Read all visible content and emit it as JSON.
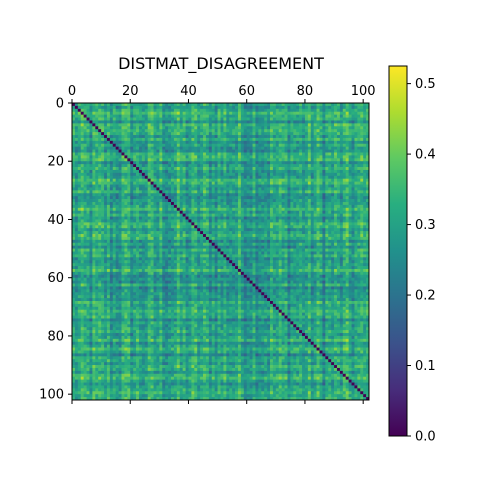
{
  "chart_data": {
    "type": "heatmap",
    "title": "DISTMAT_DISAGREEMENT",
    "xlabel": "",
    "ylabel": "",
    "matrix_size": 102,
    "diagonal_value": 0.0,
    "off_diagonal_value_range": [
      0.12,
      0.5
    ],
    "typical_off_diagonal_value": 0.3,
    "xlim": [
      0,
      102
    ],
    "ylim": [
      0,
      102
    ],
    "x_tick_values": [
      0,
      20,
      40,
      60,
      80,
      100
    ],
    "y_tick_values": [
      0,
      20,
      40,
      60,
      80,
      100
    ],
    "x_tick_labels": [
      "0",
      "20",
      "40",
      "60",
      "80",
      "100"
    ],
    "y_tick_labels": [
      "0",
      "20",
      "40",
      "60",
      "80",
      "100"
    ],
    "x_axis_position": "top",
    "y_axis_direction": "top-to-bottom",
    "colormap": "viridis",
    "colorbar": {
      "vmin": 0.0,
      "vmax": 0.525,
      "tick_values": [
        0.0,
        0.1,
        0.2,
        0.3,
        0.4,
        0.5
      ],
      "tick_labels": [
        "0.0",
        "0.1",
        "0.2",
        "0.3",
        "0.4",
        "0.5"
      ],
      "position": "right"
    },
    "grid": false,
    "legend": "none"
  }
}
